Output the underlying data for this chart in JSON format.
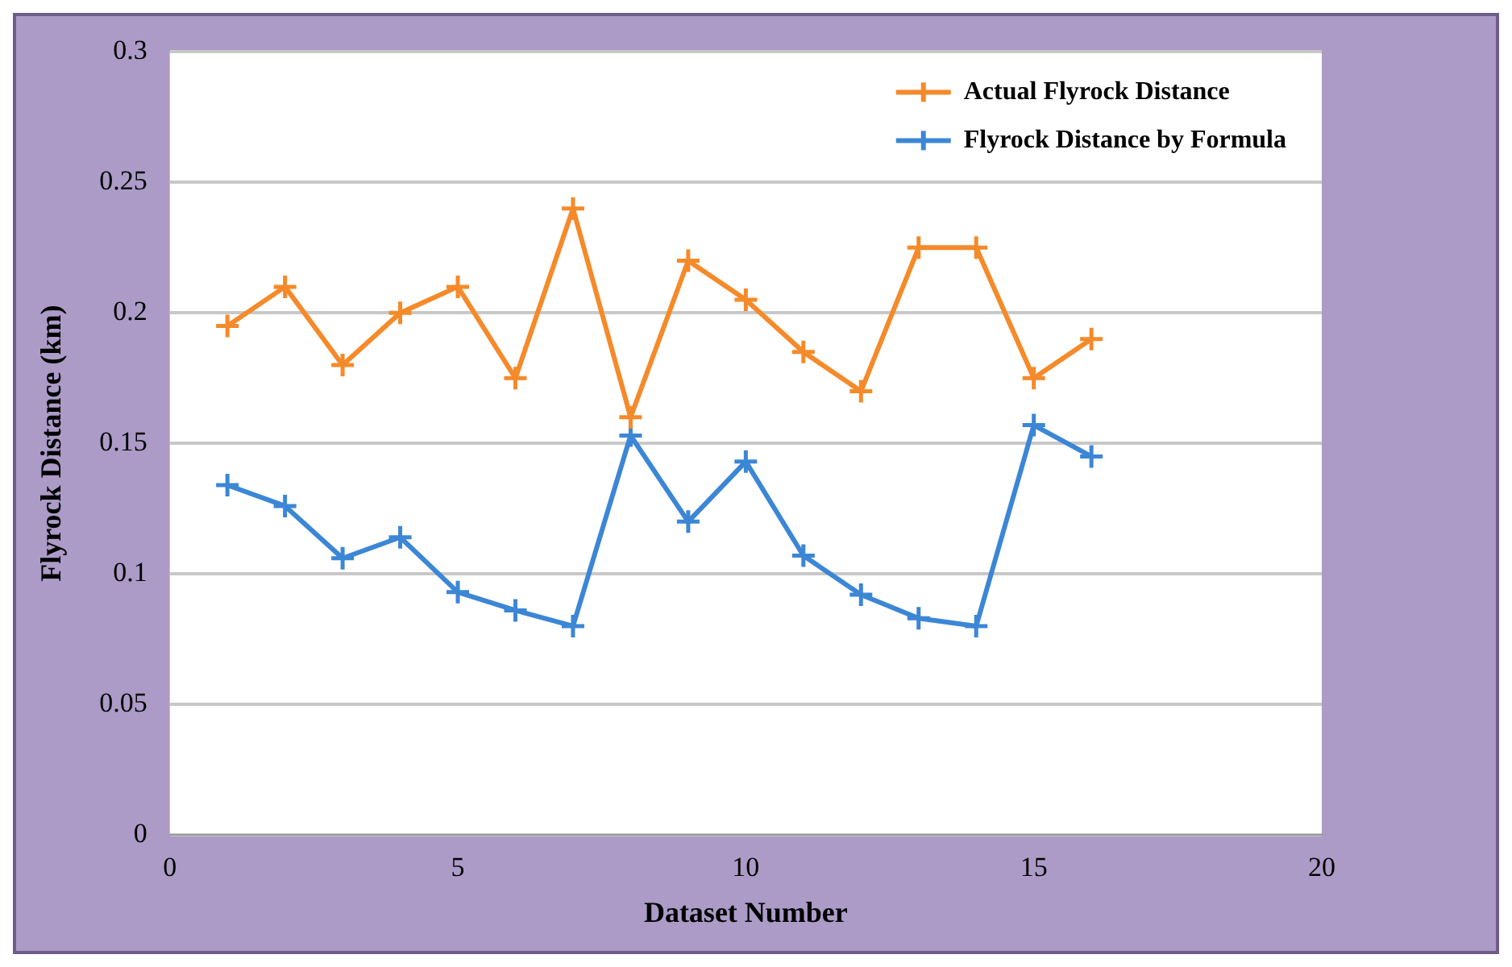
{
  "chart_data": {
    "type": "line",
    "xlabel": "Dataset Number",
    "ylabel": "Flyrock Distance (km)",
    "xlim": [
      0,
      20
    ],
    "xticks": [
      0,
      5,
      10,
      15,
      20
    ],
    "ylim": [
      0,
      0.3
    ],
    "yticks": [
      0,
      0.05,
      0.1,
      0.15,
      0.2,
      0.25,
      0.3
    ],
    "grid": "y",
    "legend": "top right",
    "marker": "cross",
    "line_style": "solid",
    "x": [
      1,
      2,
      3,
      4,
      5,
      6,
      7,
      8,
      9,
      10,
      11,
      12,
      13,
      14,
      15,
      16
    ],
    "series": [
      {
        "name": "Actual Flyrock Distance",
        "color": "#f58a2a",
        "values": [
          0.195,
          0.21,
          0.18,
          0.2,
          0.21,
          0.175,
          0.24,
          0.16,
          0.22,
          0.205,
          0.185,
          0.17,
          0.225,
          0.225,
          0.175,
          0.19
        ]
      },
      {
        "name": "Flyrock Distance by Formula",
        "color": "#3c86d6",
        "values": [
          0.134,
          0.126,
          0.106,
          0.114,
          0.093,
          0.086,
          0.08,
          0.153,
          0.12,
          0.143,
          0.107,
          0.092,
          0.083,
          0.08,
          0.157,
          0.145
        ]
      }
    ]
  }
}
